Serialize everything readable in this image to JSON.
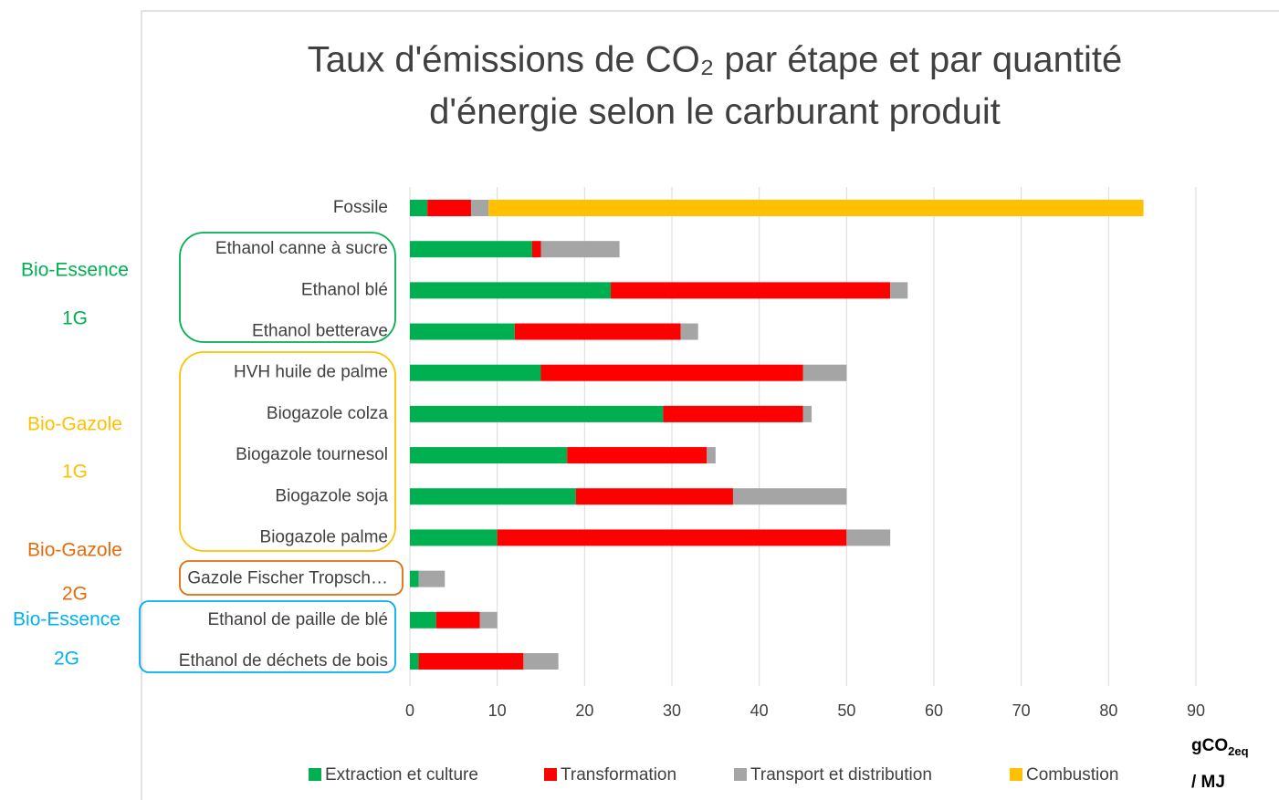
{
  "chart_data": {
    "type": "stacked-bar-horizontal",
    "title_lines": [
      "Taux d'émissions de CO₂ par étape et par quantité",
      "d'énergie selon le carburant produit"
    ],
    "categories": [
      "Fossile",
      "Ethanol canne à sucre",
      "Ethanol blé",
      "Ethanol betterave",
      "HVH huile de palme",
      "Biogazole colza",
      "Biogazole tournesol",
      "Biogazole soja",
      "Biogazole palme",
      "Gazole Fischer Tropsch…",
      "Ethanol de paille de blé",
      "Ethanol de déchets de bois"
    ],
    "series": [
      {
        "name": "Extraction et culture",
        "color": "#00b050",
        "values": [
          2,
          14,
          23,
          12,
          15,
          29,
          18,
          19,
          10,
          1,
          3,
          1
        ]
      },
      {
        "name": "Transformation",
        "color": "#ff0000",
        "values": [
          5,
          1,
          32,
          19,
          30,
          16,
          16,
          18,
          40,
          0,
          5,
          12
        ]
      },
      {
        "name": "Transport et distribution",
        "color": "#a5a5a5",
        "values": [
          2,
          9,
          2,
          2,
          5,
          1,
          1,
          13,
          5,
          3,
          2,
          4
        ]
      },
      {
        "name": "Combustion",
        "color": "#ffc000",
        "values": [
          75,
          0,
          0,
          0,
          0,
          0,
          0,
          0,
          0,
          0,
          0,
          0
        ]
      }
    ],
    "xlim": [
      0,
      90
    ],
    "xticks": [
      0,
      10,
      20,
      30,
      40,
      50,
      60,
      70,
      80,
      90
    ],
    "grid": true,
    "x_label": [
      "gCO",
      "2eq",
      "/ MJ"
    ],
    "groups": [
      {
        "name": "Bio-Essence",
        "generation": "1G",
        "color": "#00b050"
      },
      {
        "name": "Bio-Gazole",
        "generation": "1G",
        "color": "#ffc000"
      },
      {
        "name": "Bio-Gazole",
        "generation": "2G",
        "color": "#e36c0a"
      },
      {
        "name": "Bio-Essence",
        "generation": "2G",
        "color": "#00b0f0"
      }
    ]
  }
}
